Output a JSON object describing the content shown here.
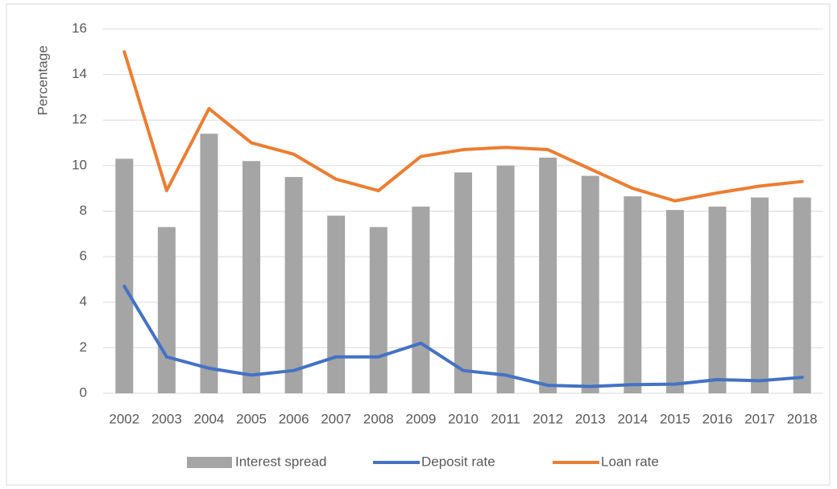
{
  "chart_data": {
    "type": "bar",
    "y_label": "Percentage",
    "categories": [
      "2002",
      "2003",
      "2004",
      "2005",
      "2006",
      "2007",
      "2008",
      "2009",
      "2010",
      "2011",
      "2012",
      "2013",
      "2014",
      "2015",
      "2016",
      "2017",
      "2018"
    ],
    "series": [
      {
        "name": "Interest spread",
        "type": "bar",
        "color": "#a5a5a5",
        "values": [
          10.3,
          7.3,
          11.4,
          10.2,
          9.5,
          7.8,
          7.3,
          8.2,
          9.7,
          10.0,
          10.35,
          9.55,
          8.65,
          8.05,
          8.2,
          8.6,
          8.6
        ]
      },
      {
        "name": "Deposit rate",
        "type": "line",
        "color": "#4472c4",
        "values": [
          4.7,
          1.6,
          1.1,
          0.8,
          1.0,
          1.6,
          1.6,
          2.2,
          1.0,
          0.8,
          0.35,
          0.3,
          0.38,
          0.4,
          0.6,
          0.55,
          0.7
        ]
      },
      {
        "name": "Loan rate",
        "type": "line",
        "color": "#ed7d31",
        "values": [
          15.0,
          8.9,
          12.5,
          11.0,
          10.5,
          9.4,
          8.9,
          10.4,
          10.7,
          10.8,
          10.7,
          9.85,
          9.0,
          8.45,
          8.8,
          9.1,
          9.3
        ]
      }
    ],
    "ylim": [
      0,
      16
    ],
    "yticks": [
      0,
      2,
      4,
      6,
      8,
      10,
      12,
      14,
      16
    ],
    "grid": true,
    "legend": "bottom"
  }
}
